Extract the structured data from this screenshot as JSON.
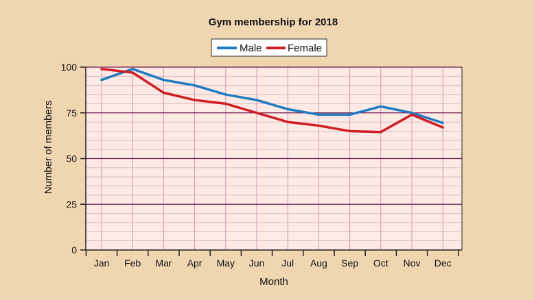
{
  "chart_data": {
    "type": "line",
    "title": "Gym membership for 2018",
    "xlabel": "Month",
    "ylabel": "Number of members",
    "categories": [
      "Jan",
      "Feb",
      "Mar",
      "Apr",
      "May",
      "Jun",
      "Jul",
      "Aug",
      "Sep",
      "Oct",
      "Nov",
      "Dec"
    ],
    "ylim": [
      0,
      100
    ],
    "yticks": [
      0,
      25,
      50,
      75,
      100
    ],
    "minor_step": 5,
    "legend_position": "top-center",
    "series": [
      {
        "name": "Male",
        "color": "#1f7bc1",
        "values": [
          93,
          99,
          93,
          90,
          85,
          82,
          77,
          74,
          74,
          78.5,
          75,
          69.5
        ]
      },
      {
        "name": "Female",
        "color": "#cf1d23",
        "values": [
          99,
          97,
          86,
          82,
          80,
          75,
          70,
          68,
          65,
          64.5,
          74,
          67
        ]
      }
    ],
    "colors": {
      "background": "#f0d5b1",
      "plot_background": "#fdeae5",
      "major_grid": "#6b1b4a",
      "minor_grid": "#d6a9b5",
      "vertical_grid": "#c69bb6",
      "axis": "#222222"
    }
  }
}
